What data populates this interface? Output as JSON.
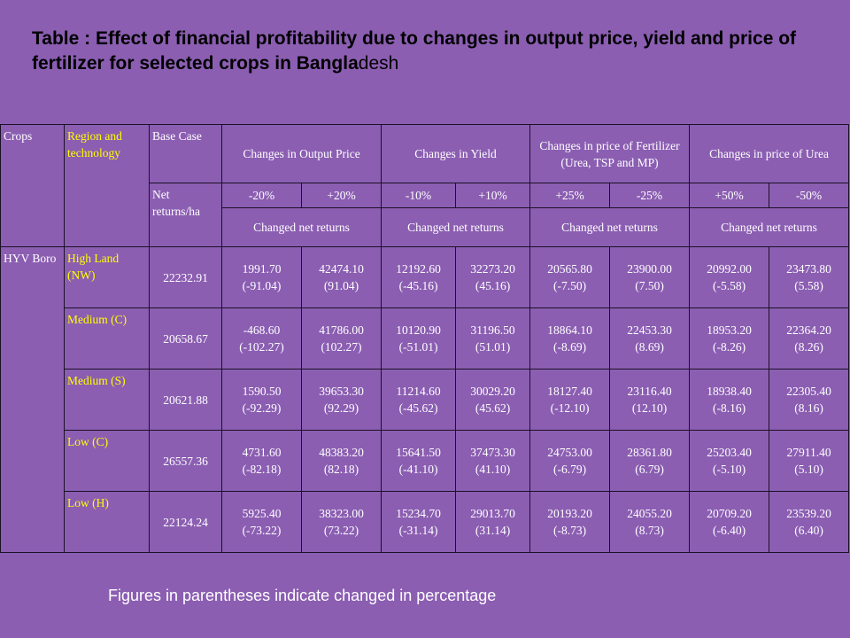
{
  "title": {
    "bold": "Table : Effect of financial profitability due to changes in output price, yield and price of fertilizer for selected crops in Bangla",
    "normal": "desh"
  },
  "table": {
    "header": {
      "crops": "Crops",
      "region": "Region and technology",
      "base_case": "Base Case",
      "groups": [
        "Changes in Output Price",
        "Changes in Yield",
        "Changes in price of Fertilizer (Urea, TSP and MP)",
        "Changes in price of Urea"
      ],
      "net_returns": "Net returns/ha",
      "pct": [
        "-20%",
        "+20%",
        "-10%",
        "+10%",
        "+25%",
        "-25%",
        "+50%",
        "-50%"
      ],
      "changed": [
        "Changed net returns",
        "Changed net returns",
        "Changed net returns",
        "Changed net returns"
      ]
    },
    "crop": "HYV Boro",
    "rows": [
      {
        "region": "High Land (NW)",
        "base": "22232.91",
        "cells": [
          [
            "1991.70",
            "(-91.04)"
          ],
          [
            "42474.10",
            "(91.04)"
          ],
          [
            "12192.60",
            "(-45.16)"
          ],
          [
            "32273.20",
            "(45.16)"
          ],
          [
            "20565.80",
            "(-7.50)"
          ],
          [
            "23900.00",
            "(7.50)"
          ],
          [
            "20992.00",
            "(-5.58)"
          ],
          [
            "23473.80",
            "(5.58)"
          ]
        ]
      },
      {
        "region": "Medium (C)",
        "base": "20658.67",
        "cells": [
          [
            "-468.60",
            "(-102.27)"
          ],
          [
            "41786.00",
            "(102.27)"
          ],
          [
            "10120.90",
            "(-51.01)"
          ],
          [
            "31196.50",
            "(51.01)"
          ],
          [
            "18864.10",
            "(-8.69)"
          ],
          [
            "22453.30",
            "(8.69)"
          ],
          [
            "18953.20",
            "(-8.26)"
          ],
          [
            "22364.20",
            "(8.26)"
          ]
        ]
      },
      {
        "region": "Medium (S)",
        "base": "20621.88",
        "cells": [
          [
            "1590.50",
            "(-92.29)"
          ],
          [
            "39653.30",
            "(92.29)"
          ],
          [
            "11214.60",
            "(-45.62)"
          ],
          [
            "30029.20",
            "(45.62)"
          ],
          [
            "18127.40",
            "(-12.10)"
          ],
          [
            "23116.40",
            "(12.10)"
          ],
          [
            "18938.40",
            "(-8.16)"
          ],
          [
            "22305.40",
            "(8.16)"
          ]
        ]
      },
      {
        "region": "Low (C)",
        "base": "26557.36",
        "cells": [
          [
            "4731.60",
            "(-82.18)"
          ],
          [
            "48383.20",
            "(82.18)"
          ],
          [
            "15641.50",
            "(-41.10)"
          ],
          [
            "37473.30",
            "(41.10)"
          ],
          [
            "24753.00",
            "(-6.79)"
          ],
          [
            "28361.80",
            "(6.79)"
          ],
          [
            "25203.40",
            "(-5.10)"
          ],
          [
            "27911.40",
            "(5.10)"
          ]
        ]
      },
      {
        "region": "Low (H)",
        "base": "22124.24",
        "cells": [
          [
            "5925.40",
            "(-73.22)"
          ],
          [
            "38323.00",
            "(73.22)"
          ],
          [
            "15234.70",
            "(-31.14)"
          ],
          [
            "29013.70",
            "(31.14)"
          ],
          [
            "20193.20",
            "(-8.73)"
          ],
          [
            "24055.20",
            "(8.73)"
          ],
          [
            "20709.20",
            "(-6.40)"
          ],
          [
            "23539.20",
            "(6.40)"
          ]
        ]
      }
    ]
  },
  "footnote": "Figures in parentheses indicate changed in percentage"
}
